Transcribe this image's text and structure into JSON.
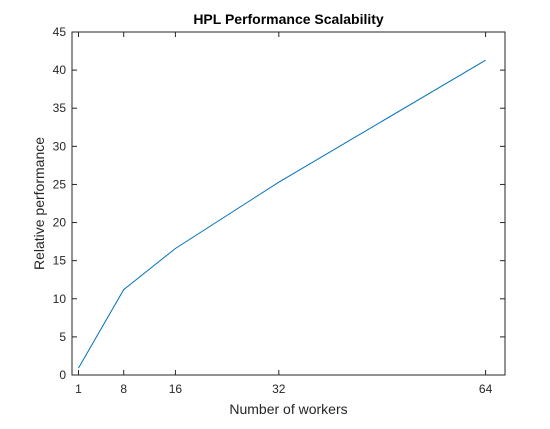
{
  "chart_data": {
    "type": "line",
    "title": "HPL Performance Scalability",
    "xlabel": "Number of workers",
    "ylabel": "Relative performance",
    "xlim": [
      0,
      67
    ],
    "ylim": [
      0,
      45
    ],
    "xticks": [
      1,
      8,
      16,
      32,
      64
    ],
    "yticks": [
      0,
      5,
      10,
      15,
      20,
      25,
      30,
      35,
      40,
      45
    ],
    "grid": false,
    "series": [
      {
        "color": "#0072BD",
        "x": [
          1,
          8,
          16,
          32,
          64
        ],
        "y": [
          0.9,
          11.2,
          16.6,
          25.3,
          41.3
        ]
      }
    ]
  }
}
